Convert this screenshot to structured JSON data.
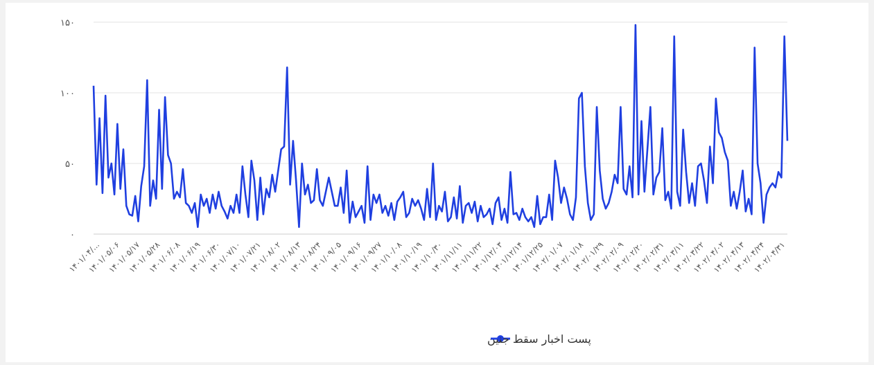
{
  "chart_data": {
    "type": "line",
    "title": "",
    "xlabel": "",
    "ylabel": "",
    "ylim": [
      0,
      150
    ],
    "y_ticks": [
      0,
      50,
      100,
      150
    ],
    "y_tick_labels": [
      "۰",
      "۵۰",
      "۱۰۰",
      "۱۵۰"
    ],
    "grid": "horizontal",
    "legend": "bottom-center",
    "color": "#1f3fe0",
    "x_tick_labels": [
      "۱۴۰۱/۰۴/...",
      "۱۴۰۱/۰۵/۰۶",
      "۱۴۰۱/۰۵/۱۷",
      "۱۴۰۱/۰۵/۲۸",
      "۱۴۰۱/۰۶/۰۸",
      "۱۴۰۱/۰۶/۱۹",
      "۱۴۰۱/۰۶/۳۰",
      "۱۴۰۱/۰۷/۱۰",
      "۱۴۰۱/۰۷/۲۱",
      "۱۴۰۱/۰۸/۰۲",
      "۱۴۰۱/۰۸/۱۳",
      "۱۴۰۱/۰۸/۲۴",
      "۱۴۰۱/۰۹/۰۵",
      "۱۴۰۱/۰۹/۱۶",
      "۱۴۰۱/۰۹/۲۷",
      "۱۴۰۱/۱۰/۰۸",
      "۱۴۰۱/۱۰/۱۹",
      "۱۴۰۱/۱۰/۳۰",
      "۱۴۰۱/۱۱/۱۱",
      "۱۴۰۱/۱۱/۲۲",
      "۱۴۰۱/۱۲/۰۳",
      "۱۴۰۱/۱۲/۱۴",
      "۱۴۰۱/۱۲/۲۵",
      "۱۴۰۲/۰۱/۰۷",
      "۱۴۰۲/۰۱/۱۸",
      "۱۴۰۲/۰۱/۲۹",
      "۱۴۰۲/۰۲/۰۹",
      "۱۴۰۲/۰۲/۲۰",
      "۱۴۰۲/۰۲/۳۱",
      "۱۴۰۲/۰۳/۱۱",
      "۱۴۰۲/۰۳/۲۲",
      "۱۴۰۲/۰۴/۰۲",
      "۱۴۰۲/۰۴/۱۳",
      "۱۴۰۲/۰۴/۲۴",
      "۱۴۰۲/۰۴/۳۱"
    ],
    "series": [
      {
        "name": "پست اخبار سقط جنین",
        "values": [
          105,
          35,
          82,
          29,
          98,
          40,
          50,
          28,
          78,
          32,
          60,
          20,
          14,
          13,
          27,
          9,
          34,
          48,
          109,
          20,
          38,
          25,
          88,
          32,
          97,
          56,
          50,
          25,
          30,
          26,
          46,
          22,
          20,
          15,
          22,
          5,
          28,
          20,
          25,
          15,
          28,
          18,
          30,
          20,
          16,
          11,
          20,
          15,
          28,
          15,
          48,
          28,
          12,
          52,
          38,
          10,
          40,
          14,
          32,
          26,
          42,
          30,
          45,
          60,
          62,
          118,
          35,
          66,
          38,
          5,
          50,
          28,
          35,
          22,
          24,
          46,
          24,
          20,
          30,
          40,
          30,
          20,
          20,
          33,
          15,
          45,
          8,
          23,
          12,
          16,
          20,
          8,
          48,
          10,
          28,
          22,
          28,
          15,
          20,
          13,
          22,
          10,
          23,
          26,
          30,
          12,
          15,
          25,
          20,
          24,
          18,
          10,
          32,
          12,
          50,
          10,
          20,
          16,
          30,
          9,
          12,
          26,
          11,
          34,
          8,
          20,
          22,
          15,
          23,
          9,
          20,
          12,
          14,
          18,
          7,
          22,
          26,
          10,
          18,
          8,
          44,
          14,
          15,
          10,
          18,
          12,
          9,
          12,
          5,
          27,
          7,
          12,
          12,
          28,
          10,
          52,
          40,
          22,
          33,
          25,
          14,
          10,
          26,
          96,
          100,
          48,
          22,
          10,
          14,
          90,
          45,
          25,
          18,
          22,
          30,
          42,
          36,
          90,
          32,
          28,
          48,
          26,
          148,
          28,
          80,
          30,
          60,
          90,
          28,
          40,
          44,
          75,
          24,
          30,
          18,
          140,
          30,
          20,
          74,
          44,
          22,
          36,
          20,
          48,
          50,
          38,
          22,
          62,
          36,
          96,
          72,
          68,
          58,
          52,
          20,
          30,
          18,
          30,
          45,
          16,
          25,
          14,
          132,
          50,
          36,
          8,
          28,
          33,
          36,
          33,
          44,
          40,
          140,
          66
        ]
      }
    ]
  }
}
